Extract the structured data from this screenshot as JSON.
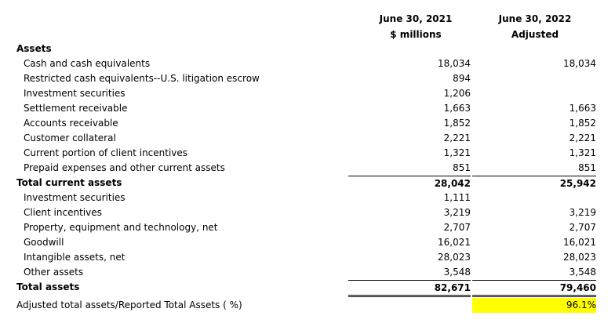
{
  "columns": [
    {
      "line1": "June 30, 2021",
      "line2": "$ millions"
    },
    {
      "line1": "June 30, 2022",
      "line2": "Adjusted"
    }
  ],
  "section_heading": "Assets",
  "current_assets": [
    {
      "label": "Cash and cash equivalents",
      "v2021": "18,034",
      "v2022": "18,034"
    },
    {
      "label": "Restricted cash equivalents--U.S. litigation escrow",
      "v2021": "894",
      "v2022": ""
    },
    {
      "label": "Investment securities",
      "v2021": "1,206",
      "v2022": ""
    },
    {
      "label": "Settlement receivable",
      "v2021": "1,663",
      "v2022": "1,663"
    },
    {
      "label": "Accounts receivable",
      "v2021": "1,852",
      "v2022": "1,852"
    },
    {
      "label": "Customer collateral",
      "v2021": "2,221",
      "v2022": "2,221"
    },
    {
      "label": "Current portion of client incentives",
      "v2021": "1,321",
      "v2022": "1,321"
    },
    {
      "label": "Prepaid expenses and other current assets",
      "v2021": "851",
      "v2022": "851"
    }
  ],
  "total_current_assets": {
    "label": "Total current assets",
    "v2021": "28,042",
    "v2022": "25,942"
  },
  "noncurrent_assets": [
    {
      "label": "Investment securities",
      "v2021": "1,111",
      "v2022": ""
    },
    {
      "label": "Client incentives",
      "v2021": "3,219",
      "v2022": "3,219"
    },
    {
      "label": "Property, equipment and technology, net",
      "v2021": "2,707",
      "v2022": "2,707"
    },
    {
      "label": "Goodwill",
      "v2021": "16,021",
      "v2022": "16,021"
    },
    {
      "label": "Intangible assets, net",
      "v2021": "28,023",
      "v2022": "28,023"
    },
    {
      "label": "Other assets",
      "v2021": "3,548",
      "v2022": "3,548"
    }
  ],
  "total_assets": {
    "label": "Total assets",
    "v2021": "82,671",
    "v2022": "79,460"
  },
  "ratio": {
    "label": "Adjusted total assets/Reported Total Assets ( %)",
    "v2021": "",
    "v2022": "96.1%"
  },
  "colors": {
    "highlight": "#ffff00"
  }
}
